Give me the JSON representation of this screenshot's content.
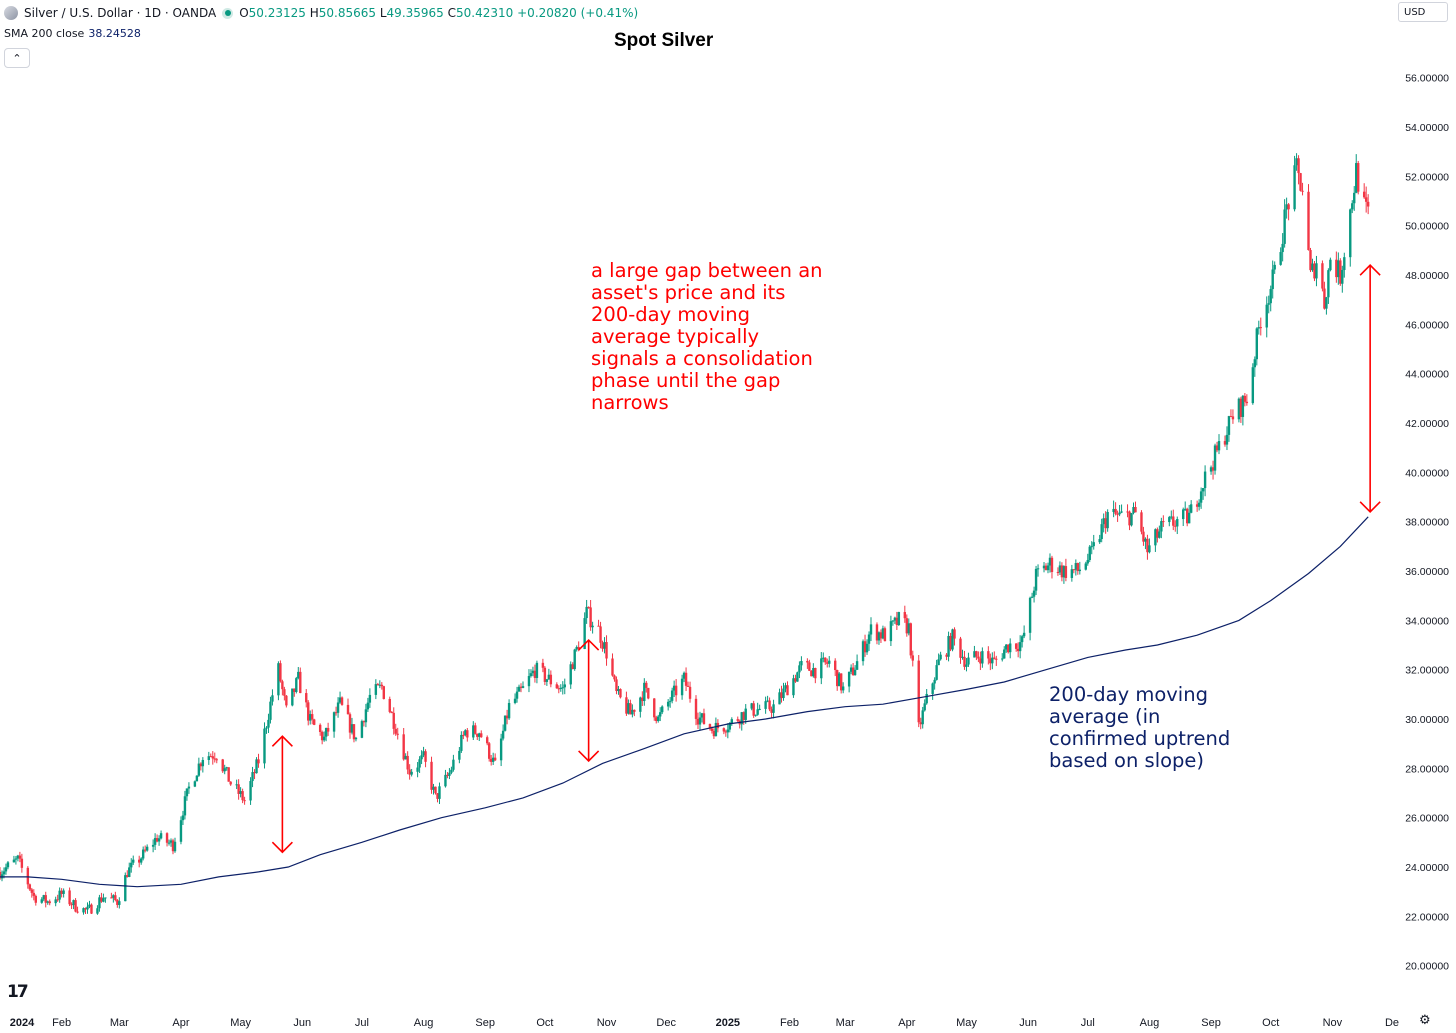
{
  "header": {
    "symbol": "Silver / U.S. Dollar · 1D · OANDA",
    "open_label": "O",
    "open": "50.23125",
    "high_label": "H",
    "high": "50.85665",
    "low_label": "L",
    "low": "49.35965",
    "close_label": "C",
    "close": "50.42310",
    "change": "+0.20820 (+0.41%)",
    "indicator_name": "SMA 200 close",
    "indicator_value": "38.24528",
    "collapse_glyph": "⌃"
  },
  "currency": "USD",
  "tv_logo": "17",
  "settings_glyph": "⚙",
  "colors": {
    "up": "#089981",
    "down": "#f23645",
    "sma": "#0d2168",
    "annotation_red": "#ff0000",
    "annotation_blue": "#0d2168"
  },
  "annotations": {
    "gap_note": "a large gap between an\nasset's price and its\n200-day moving\naverage typically\nsignals a consolidation\nphase until the gap\nnarrows",
    "sma_note": "200-day moving\naverage (in\nconfirmed uptrend\nbased on slope)"
  },
  "chart_data": {
    "type": "candlestick",
    "title": "Spot Silver",
    "ylim": [
      19.5,
      56.8
    ],
    "y_ticks": [
      "56.00000",
      "54.00000",
      "52.00000",
      "50.00000",
      "48.00000",
      "46.00000",
      "44.00000",
      "42.00000",
      "40.00000",
      "38.00000",
      "36.00000",
      "34.00000",
      "32.00000",
      "30.00000",
      "28.00000",
      "26.00000",
      "24.00000",
      "22.00000",
      "20.00000"
    ],
    "x_start": "2024-01-01",
    "x_end": "2025-12-03",
    "x_ticks": [
      {
        "label": "2024",
        "date": "2024-01-01",
        "bold": true
      },
      {
        "label": "Feb",
        "date": "2024-02-01"
      },
      {
        "label": "Mar",
        "date": "2024-03-01"
      },
      {
        "label": "Apr",
        "date": "2024-04-01"
      },
      {
        "label": "May",
        "date": "2024-05-01"
      },
      {
        "label": "Jun",
        "date": "2024-06-01"
      },
      {
        "label": "Jul",
        "date": "2024-07-01"
      },
      {
        "label": "Aug",
        "date": "2024-08-01"
      },
      {
        "label": "Sep",
        "date": "2024-09-01"
      },
      {
        "label": "Oct",
        "date": "2024-10-01"
      },
      {
        "label": "Nov",
        "date": "2024-11-01"
      },
      {
        "label": "Dec",
        "date": "2024-12-01"
      },
      {
        "label": "2025",
        "date": "2025-01-01",
        "bold": true
      },
      {
        "label": "Feb",
        "date": "2025-02-01"
      },
      {
        "label": "Mar",
        "date": "2025-03-01"
      },
      {
        "label": "Apr",
        "date": "2025-04-01"
      },
      {
        "label": "May",
        "date": "2025-05-01"
      },
      {
        "label": "Jun",
        "date": "2025-06-01"
      },
      {
        "label": "Jul",
        "date": "2025-07-01"
      },
      {
        "label": "Aug",
        "date": "2025-08-01"
      },
      {
        "label": "Sep",
        "date": "2025-09-01"
      },
      {
        "label": "Oct",
        "date": "2025-10-01"
      },
      {
        "label": "Nov",
        "date": "2025-11-01"
      },
      {
        "label": "De",
        "date": "2025-12-01"
      }
    ],
    "price_path": [
      [
        "2024-01-01",
        23.8
      ],
      [
        "2024-01-10",
        24.3
      ],
      [
        "2024-01-18",
        22.8
      ],
      [
        "2024-01-25",
        22.6
      ],
      [
        "2024-02-01",
        22.9
      ],
      [
        "2024-02-08",
        22.4
      ],
      [
        "2024-02-14",
        22.2
      ],
      [
        "2024-02-22",
        22.8
      ],
      [
        "2024-02-29",
        22.6
      ],
      [
        "2024-03-05",
        23.8
      ],
      [
        "2024-03-12",
        24.4
      ],
      [
        "2024-03-20",
        25.2
      ],
      [
        "2024-03-28",
        24.9
      ],
      [
        "2024-04-05",
        27.2
      ],
      [
        "2024-04-12",
        28.5
      ],
      [
        "2024-04-19",
        28.6
      ],
      [
        "2024-04-26",
        27.4
      ],
      [
        "2024-05-03",
        26.7
      ],
      [
        "2024-05-10",
        28.3
      ],
      [
        "2024-05-17",
        31.0
      ],
      [
        "2024-05-20",
        32.0
      ],
      [
        "2024-05-24",
        30.3
      ],
      [
        "2024-05-30",
        31.6
      ],
      [
        "2024-06-05",
        29.9
      ],
      [
        "2024-06-12",
        29.2
      ],
      [
        "2024-06-20",
        30.6
      ],
      [
        "2024-06-28",
        29.2
      ],
      [
        "2024-07-05",
        30.9
      ],
      [
        "2024-07-11",
        31.3
      ],
      [
        "2024-07-18",
        29.7
      ],
      [
        "2024-07-25",
        27.9
      ],
      [
        "2024-08-01",
        28.4
      ],
      [
        "2024-08-07",
        26.8
      ],
      [
        "2024-08-14",
        27.8
      ],
      [
        "2024-08-22",
        29.5
      ],
      [
        "2024-08-29",
        29.5
      ],
      [
        "2024-09-06",
        28.1
      ],
      [
        "2024-09-13",
        30.5
      ],
      [
        "2024-09-20",
        31.2
      ],
      [
        "2024-09-26",
        32.0
      ],
      [
        "2024-10-03",
        31.6
      ],
      [
        "2024-10-10",
        31.2
      ],
      [
        "2024-10-17",
        32.8
      ],
      [
        "2024-10-22",
        34.3
      ],
      [
        "2024-10-28",
        33.6
      ],
      [
        "2024-11-01",
        32.7
      ],
      [
        "2024-11-06",
        31.0
      ],
      [
        "2024-11-13",
        30.2
      ],
      [
        "2024-11-20",
        31.2
      ],
      [
        "2024-11-27",
        30.0
      ],
      [
        "2024-12-03",
        30.8
      ],
      [
        "2024-12-10",
        31.6
      ],
      [
        "2024-12-17",
        30.1
      ],
      [
        "2024-12-24",
        29.6
      ],
      [
        "2025-01-02",
        29.8
      ],
      [
        "2025-01-10",
        30.3
      ],
      [
        "2025-01-17",
        30.4
      ],
      [
        "2025-01-24",
        30.5
      ],
      [
        "2025-01-31",
        31.3
      ],
      [
        "2025-02-07",
        32.1
      ],
      [
        "2025-02-14",
        32.0
      ],
      [
        "2025-02-21",
        32.3
      ],
      [
        "2025-02-28",
        31.2
      ],
      [
        "2025-03-07",
        32.3
      ],
      [
        "2025-03-14",
        33.6
      ],
      [
        "2025-03-21",
        33.4
      ],
      [
        "2025-03-28",
        34.0
      ],
      [
        "2025-04-02",
        33.7
      ],
      [
        "2025-04-07",
        29.6
      ],
      [
        "2025-04-10",
        30.5
      ],
      [
        "2025-04-17",
        32.3
      ],
      [
        "2025-04-24",
        33.3
      ],
      [
        "2025-05-01",
        32.3
      ],
      [
        "2025-05-08",
        32.6
      ],
      [
        "2025-05-15",
        32.3
      ],
      [
        "2025-05-22",
        33.0
      ],
      [
        "2025-05-29",
        33.1
      ],
      [
        "2025-06-05",
        35.8
      ],
      [
        "2025-06-12",
        36.3
      ],
      [
        "2025-06-19",
        36.0
      ],
      [
        "2025-06-26",
        36.0
      ],
      [
        "2025-07-03",
        36.7
      ],
      [
        "2025-07-11",
        38.3
      ],
      [
        "2025-07-18",
        38.2
      ],
      [
        "2025-07-25",
        38.3
      ],
      [
        "2025-07-31",
        36.8
      ],
      [
        "2025-08-07",
        37.7
      ],
      [
        "2025-08-14",
        38.0
      ],
      [
        "2025-08-21",
        38.2
      ],
      [
        "2025-08-28",
        39.6
      ],
      [
        "2025-09-05",
        41.0
      ],
      [
        "2025-09-12",
        42.3
      ],
      [
        "2025-09-19",
        43.0
      ],
      [
        "2025-09-26",
        46.3
      ],
      [
        "2025-10-03",
        48.0
      ],
      [
        "2025-10-09",
        50.7
      ],
      [
        "2025-10-14",
        52.2
      ],
      [
        "2025-10-17",
        51.5
      ],
      [
        "2025-10-21",
        47.9
      ],
      [
        "2025-10-24",
        48.6
      ],
      [
        "2025-10-28",
        46.9
      ],
      [
        "2025-10-31",
        48.7
      ],
      [
        "2025-11-05",
        48.0
      ],
      [
        "2025-11-10",
        50.6
      ],
      [
        "2025-11-13",
        52.2
      ],
      [
        "2025-11-17",
        50.7
      ],
      [
        "2025-11-19",
        50.4
      ]
    ],
    "sma_200": [
      [
        "2024-01-01",
        23.6
      ],
      [
        "2024-01-15",
        23.6
      ],
      [
        "2024-02-01",
        23.5
      ],
      [
        "2024-02-20",
        23.3
      ],
      [
        "2024-03-10",
        23.2
      ],
      [
        "2024-04-01",
        23.3
      ],
      [
        "2024-04-20",
        23.6
      ],
      [
        "2024-05-10",
        23.8
      ],
      [
        "2024-05-25",
        24.0
      ],
      [
        "2024-06-10",
        24.5
      ],
      [
        "2024-07-01",
        25.0
      ],
      [
        "2024-07-20",
        25.5
      ],
      [
        "2024-08-10",
        26.0
      ],
      [
        "2024-09-01",
        26.4
      ],
      [
        "2024-09-20",
        26.8
      ],
      [
        "2024-10-10",
        27.4
      ],
      [
        "2024-10-30",
        28.2
      ],
      [
        "2024-11-20",
        28.8
      ],
      [
        "2024-12-10",
        29.4
      ],
      [
        "2025-01-01",
        29.8
      ],
      [
        "2025-01-20",
        30.0
      ],
      [
        "2025-02-10",
        30.3
      ],
      [
        "2025-03-01",
        30.5
      ],
      [
        "2025-03-20",
        30.6
      ],
      [
        "2025-04-10",
        30.9
      ],
      [
        "2025-05-01",
        31.2
      ],
      [
        "2025-05-20",
        31.5
      ],
      [
        "2025-06-10",
        32.0
      ],
      [
        "2025-07-01",
        32.5
      ],
      [
        "2025-07-20",
        32.8
      ],
      [
        "2025-08-05",
        33.0
      ],
      [
        "2025-08-25",
        33.4
      ],
      [
        "2025-09-15",
        34.0
      ],
      [
        "2025-10-01",
        34.8
      ],
      [
        "2025-10-20",
        35.9
      ],
      [
        "2025-11-05",
        37.0
      ],
      [
        "2025-11-19",
        38.2
      ]
    ],
    "arrows": [
      {
        "date": "2024-05-22",
        "from": 29.3,
        "to": 24.6,
        "color": "red"
      },
      {
        "date": "2024-10-23",
        "from": 33.2,
        "to": 28.3,
        "color": "red"
      },
      {
        "date": "2025-11-20",
        "from": 48.4,
        "to": 38.4,
        "color": "red"
      }
    ]
  }
}
